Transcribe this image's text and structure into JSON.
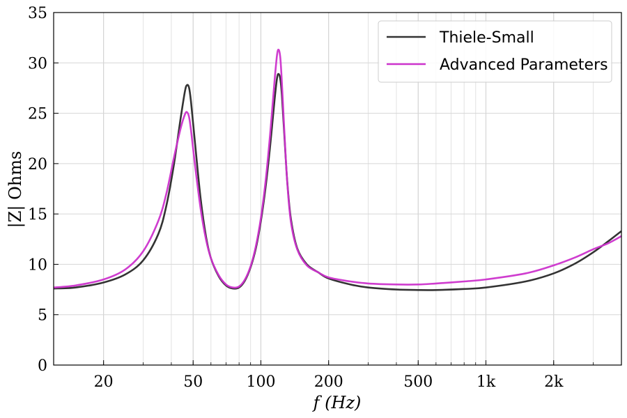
{
  "chart_data": {
    "type": "line",
    "title": "",
    "xlabel": "f (Hz)",
    "ylabel": "|Z| Ohms",
    "xscale": "log",
    "xlim": [
      12,
      4000
    ],
    "ylim": [
      0,
      35
    ],
    "grid": true,
    "legend_position": "top-right",
    "x_ticks": [
      {
        "value": 20,
        "label": "20"
      },
      {
        "value": 50,
        "label": "50"
      },
      {
        "value": 100,
        "label": "100"
      },
      {
        "value": 200,
        "label": "200"
      },
      {
        "value": 500,
        "label": "500"
      },
      {
        "value": 1000,
        "label": "1k"
      },
      {
        "value": 2000,
        "label": "2k"
      }
    ],
    "y_ticks": [
      {
        "value": 0,
        "label": "0"
      },
      {
        "value": 5,
        "label": "5"
      },
      {
        "value": 10,
        "label": "10"
      },
      {
        "value": 15,
        "label": "15"
      },
      {
        "value": 20,
        "label": "20"
      },
      {
        "value": 25,
        "label": "25"
      },
      {
        "value": 30,
        "label": "30"
      },
      {
        "value": 35,
        "label": "35"
      }
    ],
    "series": [
      {
        "name": "Thiele-Small",
        "color": "#333333",
        "x": [
          12,
          15,
          20,
          25,
          30,
          35,
          38,
          41,
          44,
          46,
          47,
          48,
          49,
          51,
          54,
          57,
          60,
          65,
          70,
          75,
          80,
          85,
          90,
          95,
          100,
          105,
          110,
          115,
          118,
          120,
          122,
          124,
          127,
          131,
          136,
          145,
          160,
          180,
          200,
          250,
          300,
          400,
          500,
          600,
          800,
          1000,
          1500,
          2000,
          2500,
          3000,
          3500,
          4000
        ],
        "y": [
          7.6,
          7.7,
          8.2,
          9.0,
          10.4,
          13.0,
          15.8,
          19.8,
          24.5,
          27.2,
          27.8,
          27.5,
          26.0,
          22.0,
          16.5,
          12.8,
          10.6,
          8.8,
          7.9,
          7.6,
          7.7,
          8.4,
          9.7,
          11.6,
          14.3,
          17.7,
          21.8,
          26.3,
          28.5,
          28.9,
          28.4,
          26.8,
          23.0,
          18.2,
          14.5,
          11.6,
          10.0,
          9.2,
          8.6,
          8.0,
          7.7,
          7.5,
          7.45,
          7.45,
          7.55,
          7.7,
          8.3,
          9.1,
          10.1,
          11.2,
          12.3,
          13.3
        ]
      },
      {
        "name": "Advanced Parameters",
        "color": "#cc33cc",
        "x": [
          12,
          15,
          20,
          25,
          30,
          35,
          38,
          41,
          44,
          46,
          47,
          48,
          49,
          51,
          54,
          57,
          60,
          65,
          70,
          75,
          80,
          85,
          90,
          95,
          100,
          105,
          110,
          115,
          118,
          120,
          122,
          124,
          127,
          131,
          136,
          145,
          160,
          180,
          200,
          250,
          300,
          400,
          500,
          600,
          800,
          1000,
          1500,
          2000,
          2500,
          3000,
          3500,
          4000
        ],
        "y": [
          7.7,
          7.9,
          8.5,
          9.5,
          11.3,
          14.3,
          17.0,
          20.5,
          23.5,
          24.9,
          25.1,
          24.6,
          23.2,
          19.8,
          15.5,
          12.5,
          10.6,
          8.9,
          8.0,
          7.7,
          7.8,
          8.5,
          9.8,
          11.8,
          14.6,
          18.3,
          23.0,
          28.2,
          30.8,
          31.3,
          30.5,
          28.0,
          23.4,
          18.1,
          14.2,
          11.5,
          9.9,
          9.2,
          8.7,
          8.3,
          8.1,
          8.0,
          8.0,
          8.1,
          8.3,
          8.5,
          9.1,
          9.9,
          10.7,
          11.5,
          12.1,
          12.8
        ]
      }
    ]
  }
}
